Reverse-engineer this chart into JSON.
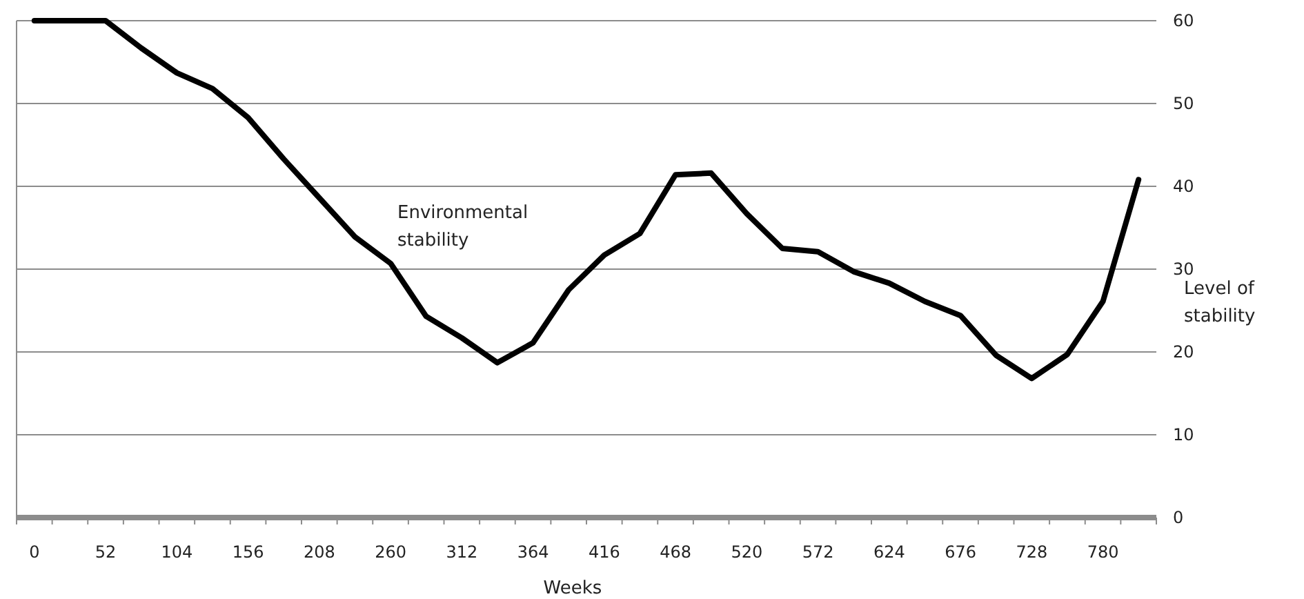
{
  "chart_data": {
    "type": "line",
    "xlabel": "Weeks",
    "ylabel": "Level of stability",
    "categories": [
      "0",
      null,
      "52",
      null,
      "104",
      null,
      "156",
      null,
      "208",
      null,
      "260",
      null,
      "312",
      null,
      "364",
      null,
      "416",
      null,
      "468",
      null,
      "520",
      null,
      "572",
      null,
      "624",
      null,
      "676",
      null,
      "728",
      null,
      "780",
      null
    ],
    "series": [
      {
        "name": "Environmental stability",
        "color": "#000000",
        "values": [
          60,
          60,
          60,
          56.7,
          53.7,
          51.8,
          48.3,
          43.3,
          38.6,
          33.9,
          30.7,
          24.3,
          21.7,
          18.7,
          21.1,
          27.5,
          31.7,
          34.3,
          41.4,
          41.6,
          36.7,
          32.5,
          32.1,
          29.7,
          28.3,
          26.1,
          24.4,
          19.6,
          16.8,
          19.7,
          26.1,
          40.8
        ]
      }
    ],
    "ylim": [
      0,
      60
    ],
    "yticks": [
      0,
      10,
      20,
      30,
      40,
      50,
      60
    ],
    "grid": "y",
    "marker": "none",
    "line_style": "solid"
  }
}
